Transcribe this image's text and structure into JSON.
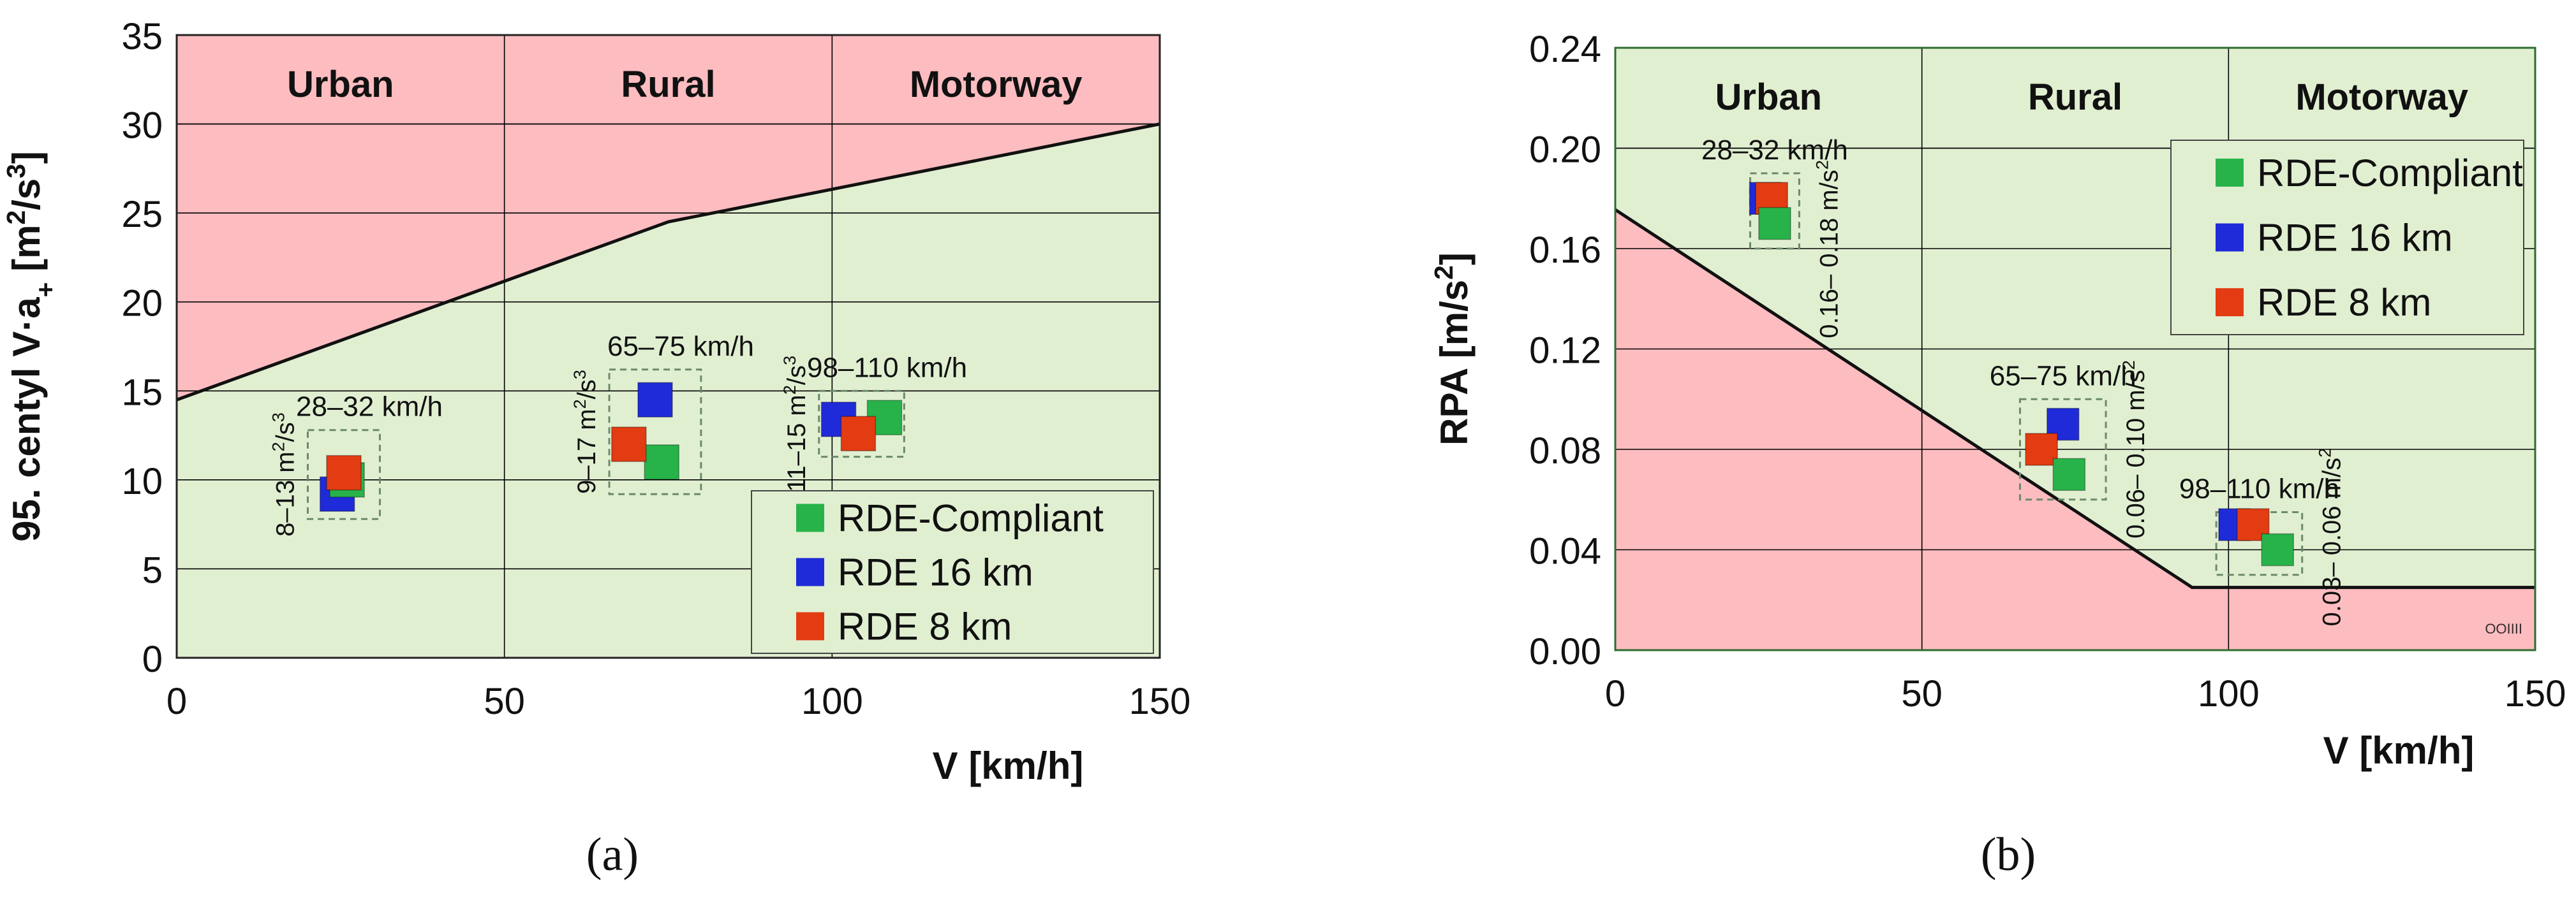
{
  "colors": {
    "green_zone": "#e1efd1",
    "red_zone": "#fcbcc0",
    "compliant": "#27b34a",
    "rde16": "#1f2bd8",
    "rde8": "#e33b12",
    "grid": "#000000",
    "box_dash": "#6a8a6a",
    "frame_green": "#2e6b2e"
  },
  "chart_data": [
    {
      "type": "scatter",
      "panel_label": "(a)",
      "xlabel": "V [km/h]",
      "ylabel": "95. centyl V·a+ [m²/s³]",
      "xlim": [
        0,
        150
      ],
      "ylim": [
        0,
        35
      ],
      "xticks": [
        0,
        50,
        100,
        150
      ],
      "yticks": [
        0,
        5,
        10,
        15,
        20,
        25,
        30,
        35
      ],
      "grid": true,
      "zones": [
        "Urban",
        "Rural",
        "Motorway"
      ],
      "limit_line": {
        "x": [
          0,
          75,
          150
        ],
        "y": [
          14.5,
          24.5,
          30
        ]
      },
      "legend": {
        "position": "bottom-right",
        "entries": [
          "RDE-Compliant",
          "RDE 16 km",
          "RDE 8 km"
        ]
      },
      "series": [
        {
          "name": "RDE-Compliant",
          "x": [
            26,
            74,
            108
          ],
          "y": [
            10,
            11,
            13.5
          ]
        },
        {
          "name": "RDE 16 km",
          "x": [
            24.5,
            73,
            101
          ],
          "y": [
            9.2,
            14.5,
            13.4
          ]
        },
        {
          "name": "RDE 8 km",
          "x": [
            25.5,
            69,
            104
          ],
          "y": [
            10.4,
            12,
            12.6
          ]
        }
      ],
      "annotations": [
        {
          "speed": "28–32 km/h",
          "range": "8–13 m²/s³",
          "box_x": [
            20,
            31
          ],
          "box_y": [
            7.8,
            12.8
          ]
        },
        {
          "speed": "65–75 km/h",
          "range": "9–17 m²/s³",
          "box_x": [
            66,
            80
          ],
          "box_y": [
            9.2,
            16.2
          ]
        },
        {
          "speed": "98–110 km/h",
          "range": "11–15 m²/s³",
          "box_x": [
            98,
            111
          ],
          "box_y": [
            11.3,
            15
          ]
        }
      ]
    },
    {
      "type": "scatter",
      "panel_label": "(b)",
      "xlabel": "V [km/h]",
      "ylabel": "RPA [m/s²]",
      "xlim": [
        0,
        150
      ],
      "ylim": [
        0,
        0.24
      ],
      "xticks": [
        0,
        50,
        100,
        150
      ],
      "yticks": [
        "0.00",
        "0.04",
        "0.08",
        "0.12",
        "0.16",
        "0.20",
        "0.24"
      ],
      "grid": true,
      "zones": [
        "Urban",
        "Rural",
        "Motorway"
      ],
      "limit_line": {
        "x": [
          0,
          94.05,
          150
        ],
        "y": [
          0.1755,
          0.025,
          0.025
        ]
      },
      "legend": {
        "position": "top-right",
        "entries": [
          "RDE-Compliant",
          "RDE 16 km",
          "RDE 8 km"
        ]
      },
      "series": [
        {
          "name": "RDE-Compliant",
          "x": [
            26,
            74,
            108
          ],
          "y": [
            0.17,
            0.07,
            0.04
          ]
        },
        {
          "name": "RDE 16 km",
          "x": [
            24.5,
            73,
            101
          ],
          "y": [
            0.18,
            0.09,
            0.05
          ]
        },
        {
          "name": "RDE 8 km",
          "x": [
            25.5,
            69.5,
            104
          ],
          "y": [
            0.18,
            0.08,
            0.05
          ]
        }
      ],
      "annotations": [
        {
          "speed": "28–32 km/h",
          "range": "0.16– 0.18 m/s²",
          "box_x": [
            22,
            30
          ],
          "box_y": [
            0.16,
            0.19
          ]
        },
        {
          "speed": "65–75 km/h",
          "range": "0.06– 0.10 m/s²",
          "box_x": [
            66,
            80
          ],
          "box_y": [
            0.06,
            0.1
          ]
        },
        {
          "speed": "98–110 km/h",
          "range": "0.03– 0.06 m/s²",
          "box_x": [
            98,
            112
          ],
          "box_y": [
            0.03,
            0.055
          ]
        }
      ],
      "watermark": "OOIIII"
    }
  ]
}
